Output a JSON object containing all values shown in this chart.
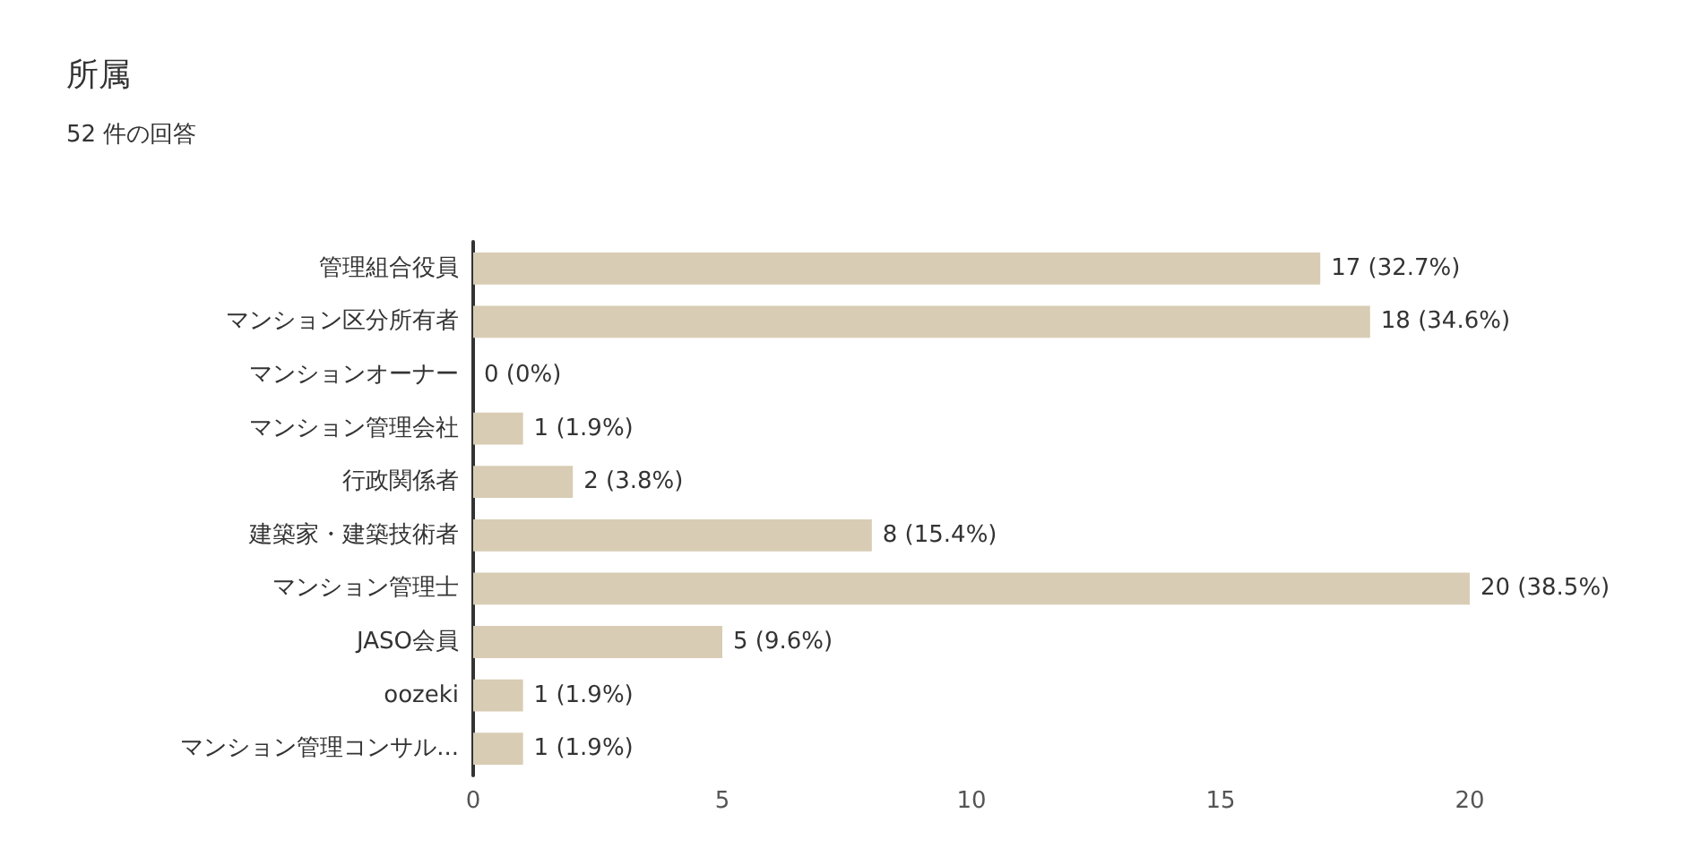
{
  "chart_data": {
    "type": "bar",
    "orientation": "horizontal",
    "title": "所属",
    "subtitle": "52 件の回答",
    "categories": [
      "管理組合役員",
      "マンション区分所有者",
      "マンションオーナー",
      "マンション管理会社",
      "行政関係者",
      "建築家・建築技術者",
      "マンション管理士",
      "JASO会員",
      "oozeki",
      "マンション管理コンサル..."
    ],
    "values": [
      17,
      18,
      0,
      1,
      2,
      8,
      20,
      5,
      1,
      1
    ],
    "value_labels": [
      "17 (32.7%)",
      "18 (34.6%)",
      "0 (0%)",
      "1 (1.9%)",
      "2 (3.8%)",
      "8 (15.4%)",
      "20 (38.5%)",
      "5 (9.6%)",
      "1 (1.9%)",
      "1 (1.9%)"
    ],
    "color": "#d8ccb4",
    "xlim": [
      0,
      20
    ],
    "xticks": [
      0,
      5,
      10,
      15,
      20
    ],
    "grid": false
  }
}
